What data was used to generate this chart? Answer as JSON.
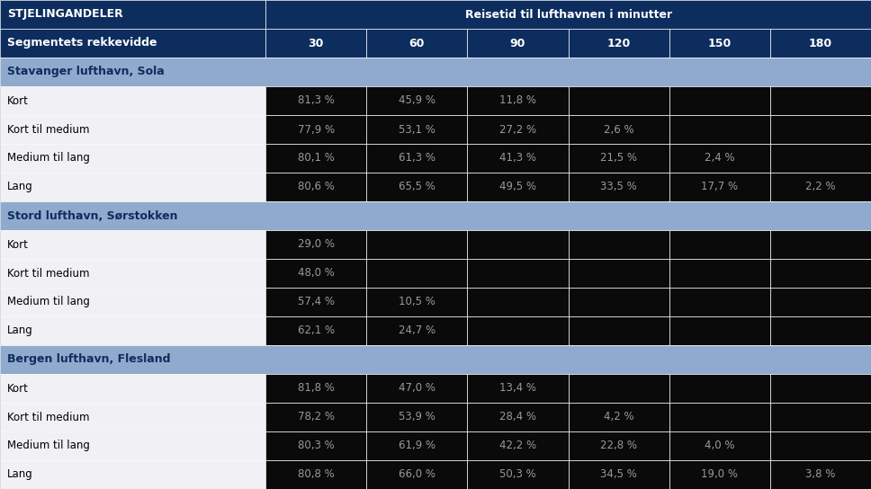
{
  "title_left": "STJELINGANDELER",
  "title_right": "Reisetid til lufthavnen i minutter",
  "col_header_left": "Segmentets rekkevidde",
  "col_headers": [
    "30",
    "60",
    "90",
    "120",
    "150",
    "180"
  ],
  "sections": [
    {
      "name": "Stavanger lufthavn, Sola",
      "rows": [
        {
          "label": "Kort",
          "values": [
            "81,3 %",
            "45,9 %",
            "11,8 %",
            "",
            "",
            ""
          ]
        },
        {
          "label": "Kort til medium",
          "values": [
            "77,9 %",
            "53,1 %",
            "27,2 %",
            "2,6 %",
            "",
            ""
          ]
        },
        {
          "label": "Medium til lang",
          "values": [
            "80,1 %",
            "61,3 %",
            "41,3 %",
            "21,5 %",
            "2,4 %",
            ""
          ]
        },
        {
          "label": "Lang",
          "values": [
            "80,6 %",
            "65,5 %",
            "49,5 %",
            "33,5 %",
            "17,7 %",
            "2,2 %"
          ]
        }
      ]
    },
    {
      "name": "Stord lufthavn, Sørstokken",
      "rows": [
        {
          "label": "Kort",
          "values": [
            "29,0 %",
            "",
            "",
            "",
            "",
            ""
          ]
        },
        {
          "label": "Kort til medium",
          "values": [
            "48,0 %",
            "",
            "",
            "",
            "",
            ""
          ]
        },
        {
          "label": "Medium til lang",
          "values": [
            "57,4 %",
            "10,5 %",
            "",
            "",
            "",
            ""
          ]
        },
        {
          "label": "Lang",
          "values": [
            "62,1 %",
            "24,7 %",
            "",
            "",
            "",
            ""
          ]
        }
      ]
    },
    {
      "name": "Bergen lufthavn, Flesland",
      "rows": [
        {
          "label": "Kort",
          "values": [
            "81,8 %",
            "47,0 %",
            "13,4 %",
            "",
            "",
            ""
          ]
        },
        {
          "label": "Kort til medium",
          "values": [
            "78,2 %",
            "53,9 %",
            "28,4 %",
            "4,2 %",
            "",
            ""
          ]
        },
        {
          "label": "Medium til lang",
          "values": [
            "80,3 %",
            "61,9 %",
            "42,2 %",
            "22,8 %",
            "4,0 %",
            ""
          ]
        },
        {
          "label": "Lang",
          "values": [
            "80,8 %",
            "66,0 %",
            "50,3 %",
            "34,5 %",
            "19,0 %",
            "3,8 %"
          ]
        }
      ]
    }
  ],
  "colors": {
    "header_bg": "#0d2d5e",
    "header_text": "#ffffff",
    "section_bg": "#8faacc",
    "section_text": "#0d2d5e",
    "row_left_bg": "#f0f0f5",
    "row_left_text": "#000000",
    "row_right_bg": "#0a0a0a",
    "row_right_text": "#999999",
    "border": "#ffffff"
  },
  "figsize": [
    9.68,
    5.44
  ],
  "dpi": 100
}
